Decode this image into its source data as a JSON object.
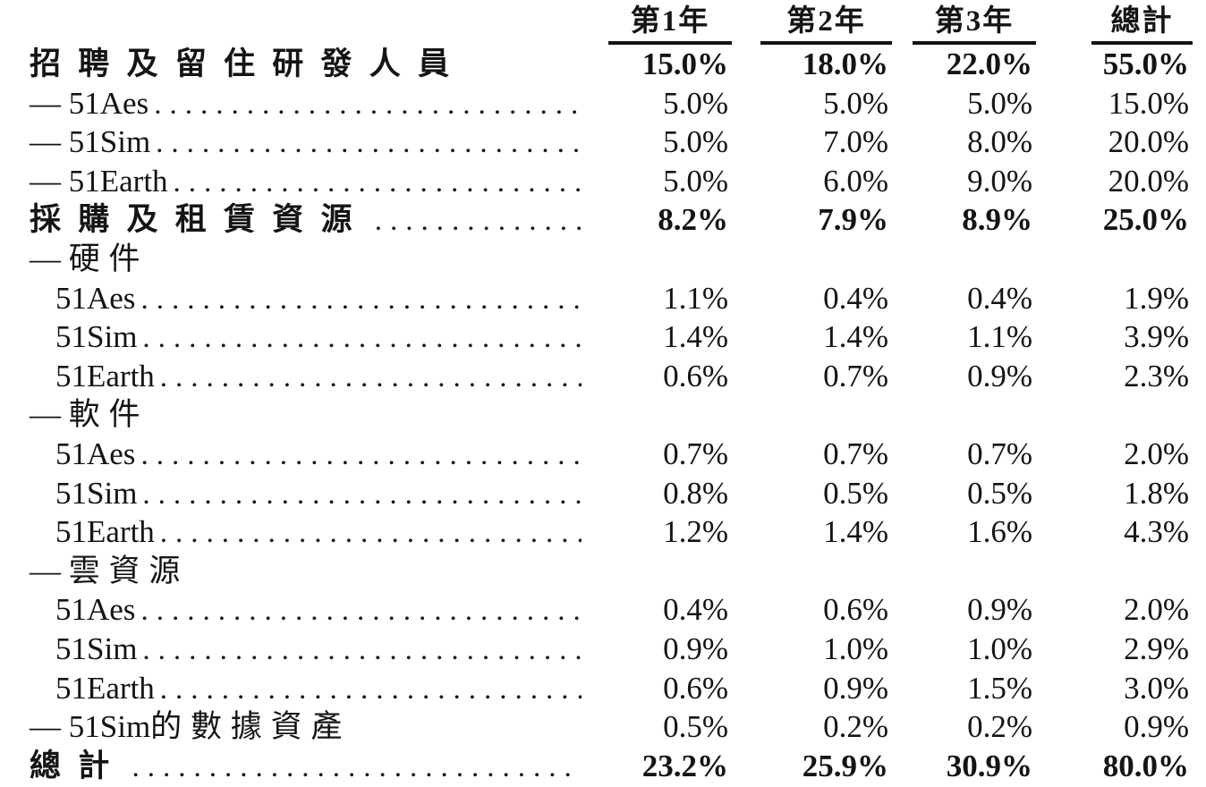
{
  "table": {
    "columns": [
      "第1年",
      "第2年",
      "第3年",
      "總計"
    ],
    "rows": [
      {
        "label": "招聘及留住研發人員",
        "bold": true,
        "indent": 0,
        "dots": false,
        "values": [
          "15.0%",
          "18.0%",
          "22.0%",
          "55.0%"
        ]
      },
      {
        "label": "— 51Aes",
        "bold": false,
        "indent": 0,
        "dots": true,
        "values": [
          "5.0%",
          "5.0%",
          "5.0%",
          "15.0%"
        ]
      },
      {
        "label": "— 51Sim",
        "bold": false,
        "indent": 0,
        "dots": true,
        "values": [
          "5.0%",
          "7.0%",
          "8.0%",
          "20.0%"
        ]
      },
      {
        "label": "— 51Earth",
        "bold": false,
        "indent": 0,
        "dots": true,
        "values": [
          "5.0%",
          "6.0%",
          "9.0%",
          "20.0%"
        ]
      },
      {
        "label": "採購及租賃資源",
        "bold": true,
        "indent": 0,
        "dots": true,
        "values": [
          "8.2%",
          "7.9%",
          "8.9%",
          "25.0%"
        ]
      },
      {
        "label": "— 硬件",
        "bold": false,
        "indent": 0,
        "dots": false,
        "values": [
          "",
          "",
          "",
          ""
        ]
      },
      {
        "label": "51Aes",
        "bold": false,
        "indent": 1,
        "dots": true,
        "values": [
          "1.1%",
          "0.4%",
          "0.4%",
          "1.9%"
        ]
      },
      {
        "label": "51Sim",
        "bold": false,
        "indent": 1,
        "dots": true,
        "values": [
          "1.4%",
          "1.4%",
          "1.1%",
          "3.9%"
        ]
      },
      {
        "label": "51Earth",
        "bold": false,
        "indent": 1,
        "dots": true,
        "values": [
          "0.6%",
          "0.7%",
          "0.9%",
          "2.3%"
        ]
      },
      {
        "label": "— 軟件",
        "bold": false,
        "indent": 0,
        "dots": false,
        "values": [
          "",
          "",
          "",
          ""
        ]
      },
      {
        "label": "51Aes",
        "bold": false,
        "indent": 1,
        "dots": true,
        "values": [
          "0.7%",
          "0.7%",
          "0.7%",
          "2.0%"
        ]
      },
      {
        "label": "51Sim",
        "bold": false,
        "indent": 1,
        "dots": true,
        "values": [
          "0.8%",
          "0.5%",
          "0.5%",
          "1.8%"
        ]
      },
      {
        "label": "51Earth",
        "bold": false,
        "indent": 1,
        "dots": true,
        "values": [
          "1.2%",
          "1.4%",
          "1.6%",
          "4.3%"
        ]
      },
      {
        "label": "— 雲資源",
        "bold": false,
        "indent": 0,
        "dots": false,
        "values": [
          "",
          "",
          "",
          ""
        ]
      },
      {
        "label": "51Aes",
        "bold": false,
        "indent": 1,
        "dots": true,
        "values": [
          "0.4%",
          "0.6%",
          "0.9%",
          "2.0%"
        ]
      },
      {
        "label": "51Sim",
        "bold": false,
        "indent": 1,
        "dots": true,
        "values": [
          "0.9%",
          "1.0%",
          "1.0%",
          "2.9%"
        ]
      },
      {
        "label": "51Earth",
        "bold": false,
        "indent": 1,
        "dots": true,
        "values": [
          "0.6%",
          "0.9%",
          "1.5%",
          "3.0%"
        ]
      },
      {
        "label": "— 51Sim的數據資產",
        "bold": false,
        "indent": 0,
        "dots": false,
        "values": [
          "0.5%",
          "0.2%",
          "0.2%",
          "0.9%"
        ]
      },
      {
        "label": "總計",
        "bold": true,
        "indent": 0,
        "dots": true,
        "values": [
          "23.2%",
          "25.9%",
          "30.9%",
          "80.0%"
        ]
      }
    ]
  },
  "colors": {
    "text": "#141414",
    "rule": "#141414"
  }
}
